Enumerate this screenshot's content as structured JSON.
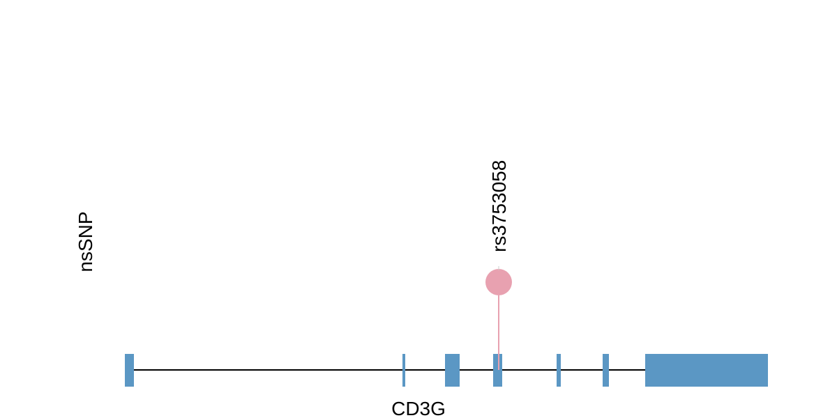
{
  "track_label": "nsSNP",
  "snp": {
    "label": "rs3753058"
  },
  "gene": {
    "label": "CD3G"
  }
}
